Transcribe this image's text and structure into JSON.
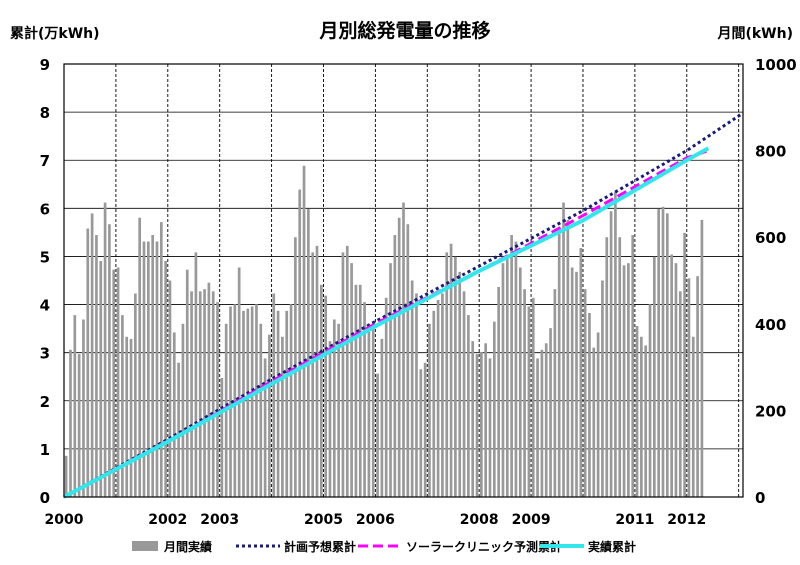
{
  "chart_data": {
    "type": "bar+line",
    "title": "月別総発電量の推移",
    "left_axis_label": "累計(万kWh)",
    "right_axis_label": "月間(kWh)",
    "left_ylim": [
      0,
      9
    ],
    "left_ticks": [
      "0",
      "1",
      "2",
      "3",
      "4",
      "5",
      "6",
      "7",
      "8",
      "9"
    ],
    "right_ylim": [
      0,
      1000
    ],
    "right_ticks": [
      "0",
      "200",
      "400",
      "600",
      "800",
      "1000"
    ],
    "x_range": [
      "2000-01",
      "2013-02"
    ],
    "x_tick_labels": [
      {
        "year": 2000,
        "label": "2000"
      },
      {
        "year": 2002,
        "label": "2002"
      },
      {
        "year": 2003,
        "label": "2003"
      },
      {
        "year": 2005,
        "label": "2005"
      },
      {
        "year": 2006,
        "label": "2006"
      },
      {
        "year": 2008,
        "label": "2008"
      },
      {
        "year": 2009,
        "label": "2009"
      },
      {
        "year": 2011,
        "label": "2011"
      },
      {
        "year": 2012,
        "label": "2012"
      }
    ],
    "grid": true,
    "legend_placement": "bottom",
    "bar_start_month": "2000-01",
    "bar_monthly_kwh": [
      95,
      340,
      420,
      330,
      410,
      620,
      655,
      605,
      545,
      680,
      630,
      525,
      530,
      420,
      370,
      365,
      470,
      645,
      590,
      590,
      605,
      590,
      635,
      545,
      500,
      380,
      310,
      400,
      525,
      475,
      565,
      475,
      480,
      495,
      475,
      450,
      275,
      400,
      440,
      445,
      530,
      430,
      435,
      440,
      445,
      400,
      320,
      375,
      470,
      430,
      370,
      430,
      445,
      600,
      710,
      765,
      665,
      565,
      580,
      490,
      465,
      360,
      410,
      400,
      565,
      580,
      540,
      490,
      490,
      450,
      400,
      405,
      285,
      365,
      460,
      540,
      605,
      645,
      680,
      630,
      500,
      470,
      295,
      310,
      400,
      430,
      455,
      470,
      565,
      585,
      555,
      520,
      475,
      420,
      360,
      330,
      335,
      355,
      320,
      405,
      485,
      540,
      560,
      605,
      590,
      530,
      480,
      440,
      460,
      320,
      340,
      355,
      390,
      480,
      620,
      680,
      640,
      530,
      520,
      575,
      480,
      425,
      345,
      380,
      500,
      600,
      660,
      705,
      600,
      535,
      540,
      605,
      395,
      370,
      350,
      445,
      555,
      665,
      670,
      655,
      560,
      540,
      475,
      610,
      505,
      370,
      510,
      640
    ],
    "series": [
      {
        "name": "月間実績",
        "kind": "bar",
        "color": "#999999"
      },
      {
        "name": "計画予想累計",
        "kind": "line",
        "color": "#1a1a7a",
        "style": "dotted",
        "points": [
          [
            "2000-01",
            0
          ],
          [
            "2002-01",
            1.2
          ],
          [
            "2004-01",
            2.45
          ],
          [
            "2006-01",
            3.65
          ],
          [
            "2008-01",
            4.8
          ],
          [
            "2010-01",
            5.95
          ],
          [
            "2012-01",
            7.2
          ],
          [
            "2013-02",
            7.98
          ]
        ]
      },
      {
        "name": "ソーラークリニック予測累計",
        "kind": "line",
        "color": "#ff00ff",
        "style": "dashed",
        "points": [
          [
            "2000-01",
            0
          ],
          [
            "2002-01",
            1.15
          ],
          [
            "2004-01",
            2.4
          ],
          [
            "2006-01",
            3.6
          ],
          [
            "2008-01",
            4.7
          ],
          [
            "2010-01",
            5.85
          ],
          [
            "2012-01",
            7.05
          ],
          [
            "2012-06",
            7.2
          ]
        ]
      },
      {
        "name": "実績累計",
        "kind": "line",
        "color": "#33e6ec",
        "style": "solid",
        "points": [
          [
            "2000-01",
            0
          ],
          [
            "2002-01",
            1.15
          ],
          [
            "2004-01",
            2.35
          ],
          [
            "2006-01",
            3.55
          ],
          [
            "2008-01",
            4.7
          ],
          [
            "2010-01",
            5.75
          ],
          [
            "2012-01",
            7.0
          ],
          [
            "2012-06",
            7.25
          ]
        ]
      }
    ]
  }
}
